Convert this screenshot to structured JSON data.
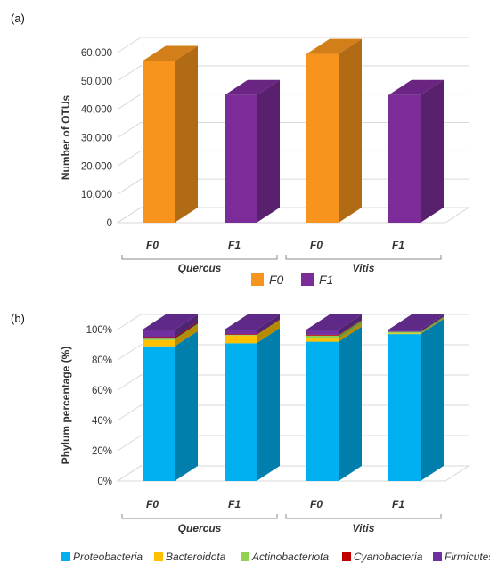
{
  "chart_data": [
    {
      "panel_label": "(a)",
      "type": "bar",
      "ylabel": "Number of OTUs",
      "ylim": [
        0,
        60000
      ],
      "yticks": [
        "0",
        "10,000",
        "20,000",
        "30,000",
        "40,000",
        "50,000",
        "60,000"
      ],
      "categories": [
        "F0",
        "F1",
        "F0",
        "F1"
      ],
      "groups": [
        "Quercus",
        "Vitis"
      ],
      "values": [
        57000,
        45000,
        59500,
        45000
      ],
      "series_colors": [
        "#f7941d",
        "#7b2c98"
      ],
      "legend": [
        {
          "name": "F0",
          "color": "#f7941d"
        },
        {
          "name": "F1",
          "color": "#7b2c98"
        }
      ]
    },
    {
      "panel_label": "(b)",
      "type": "bar",
      "stacked": true,
      "ylabel": "Phylum percentage (%)",
      "ylim": [
        0,
        100
      ],
      "yticks": [
        "0%",
        "20%",
        "40%",
        "60%",
        "80%",
        "100%"
      ],
      "categories": [
        "F0",
        "F1",
        "F0",
        "F1"
      ],
      "groups": [
        "Quercus",
        "Vitis"
      ],
      "series": [
        {
          "name": "Proteobacteria",
          "color": "#00b0f0",
          "values": [
            89,
            91,
            92,
            97
          ]
        },
        {
          "name": "Bacteroidota",
          "color": "#ffc000",
          "values": [
            4,
            5,
            2,
            0.5
          ]
        },
        {
          "name": "Actinobacteriota",
          "color": "#92d050",
          "values": [
            1,
            0.5,
            2,
            1
          ]
        },
        {
          "name": "Cyanobacteria",
          "color": "#c00000",
          "values": [
            1,
            0.5,
            0.5,
            0
          ]
        },
        {
          "name": "Firmicutes",
          "color": "#7030a0",
          "values": [
            5,
            3,
            3.5,
            1.5
          ]
        }
      ]
    }
  ]
}
